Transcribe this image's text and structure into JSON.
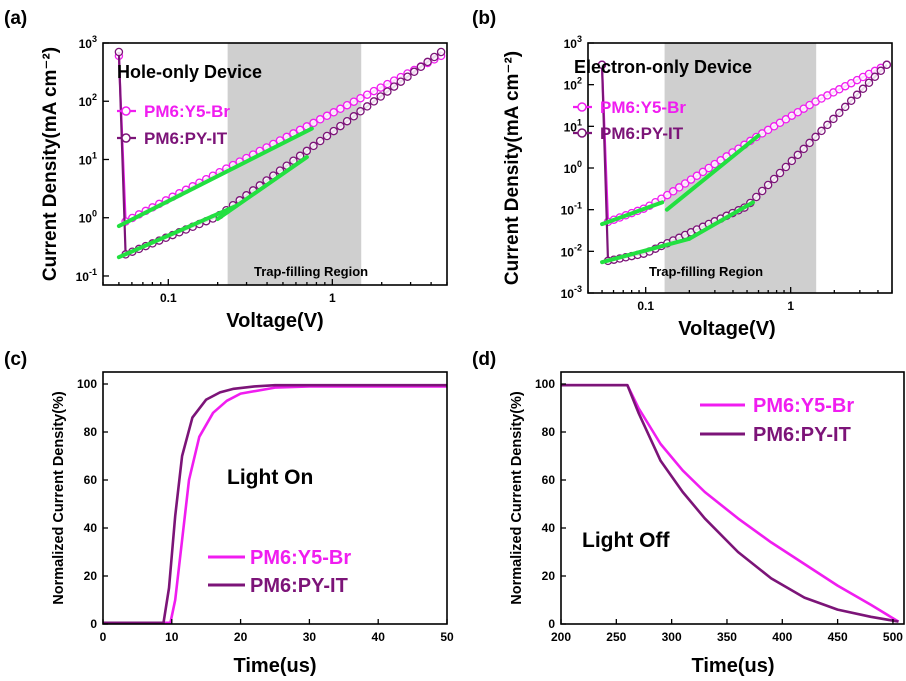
{
  "colors": {
    "pm6_y5_br": "#f01df0",
    "pm6_py_it": "#7c1478",
    "fit_line": "#22e040",
    "shade": "#cfcfcf"
  },
  "chart_data": [
    {
      "panel": "(a)",
      "type": "scatter",
      "inner_title": "Hole-only Device",
      "xlabel": "Voltage(V)",
      "ylabel": "Current Density(mA cm⁻²)",
      "x_scale": "log",
      "y_scale": "log",
      "xlim": [
        0.04,
        5
      ],
      "ylim": [
        0.07,
        1000
      ],
      "x_ticks": [
        {
          "v": 0.1,
          "label": "0.1"
        },
        {
          "v": 1,
          "label": "1"
        }
      ],
      "y_ticks": [
        {
          "v": 0.1,
          "base": "10",
          "exp": "-1"
        },
        {
          "v": 1,
          "base": "10",
          "exp": "0"
        },
        {
          "v": 10,
          "base": "10",
          "exp": "1"
        },
        {
          "v": 100,
          "base": "10",
          "exp": "2"
        },
        {
          "v": 1000,
          "base": "10",
          "exp": "3"
        }
      ],
      "shaded_region": {
        "x": [
          0.23,
          1.5
        ],
        "label": "Trap-filling Region"
      },
      "series": [
        {
          "name": "PM6:Y5-Br",
          "x": [
            0.05,
            4.6
          ],
          "y": [
            0.75,
            600
          ]
        },
        {
          "name": "PM6:PY-IT",
          "x": [
            0.05,
            0.2,
            4.6
          ],
          "y": [
            0.21,
            1.05,
            700
          ]
        }
      ],
      "fits": [
        {
          "x": [
            0.05,
            0.75
          ],
          "y": [
            0.72,
            34
          ]
        },
        {
          "x": [
            0.05,
            0.26
          ],
          "y": [
            0.21,
            1.6
          ]
        },
        {
          "x": [
            0.2,
            0.7
          ],
          "y": [
            0.95,
            11
          ]
        }
      ]
    },
    {
      "panel": "(b)",
      "type": "scatter",
      "inner_title": "Electron-only Device",
      "xlabel": "Voltage(V)",
      "ylabel": "Current Density(mA cm⁻²)",
      "x_scale": "log",
      "y_scale": "log",
      "xlim": [
        0.04,
        5
      ],
      "ylim": [
        0.001,
        1000
      ],
      "x_ticks": [
        {
          "v": 0.1,
          "label": "0.1"
        },
        {
          "v": 1,
          "label": "1"
        }
      ],
      "y_ticks": [
        {
          "v": 0.001,
          "base": "10",
          "exp": "-3"
        },
        {
          "v": 0.01,
          "base": "10",
          "exp": "-2"
        },
        {
          "v": 0.1,
          "base": "10",
          "exp": "-1"
        },
        {
          "v": 1,
          "base": "10",
          "exp": "0"
        },
        {
          "v": 10,
          "base": "10",
          "exp": "1"
        },
        {
          "v": 100,
          "base": "10",
          "exp": "2"
        },
        {
          "v": 1000,
          "base": "10",
          "exp": "3"
        }
      ],
      "shaded_region": {
        "x": [
          0.135,
          1.5
        ],
        "label": "Trap-filling Region"
      },
      "series": [
        {
          "name": "PM6:Y5-Br",
          "x": [
            0.05,
            0.1,
            0.14,
            0.6,
            1.5,
            4.6
          ],
          "y": [
            0.045,
            0.11,
            0.22,
            6,
            40,
            300
          ]
        },
        {
          "name": "PM6:PY-IT",
          "x": [
            0.05,
            0.1,
            0.5,
            4.6
          ],
          "y": [
            0.0055,
            0.009,
            0.12,
            300
          ]
        }
      ],
      "fits": [
        {
          "x": [
            0.05,
            0.13
          ],
          "y": [
            0.045,
            0.15
          ]
        },
        {
          "x": [
            0.14,
            0.6
          ],
          "y": [
            0.1,
            6
          ]
        },
        {
          "x": [
            0.05,
            0.2
          ],
          "y": [
            0.0055,
            0.02
          ]
        },
        {
          "x": [
            0.2,
            0.55
          ],
          "y": [
            0.02,
            0.15
          ]
        }
      ]
    },
    {
      "panel": "(c)",
      "type": "line",
      "inner_title": "Light On",
      "xlabel": "Time(us)",
      "ylabel": "Normalized Current Density(%)",
      "xlim": [
        0,
        50
      ],
      "ylim": [
        0,
        105
      ],
      "x_ticks": [
        0,
        10,
        20,
        30,
        40,
        50
      ],
      "y_ticks": [
        0,
        20,
        40,
        60,
        80,
        100
      ],
      "series": [
        {
          "name": "PM6:Y5-Br",
          "x": [
            0,
            9.8,
            10.5,
            11.5,
            12.5,
            14,
            16,
            18,
            20,
            25,
            30,
            50
          ],
          "y": [
            0.5,
            0.5,
            10,
            35,
            60,
            78,
            88,
            93,
            96,
            98.5,
            99,
            99
          ]
        },
        {
          "name": "PM6:PY-IT",
          "x": [
            0,
            8.8,
            9.6,
            10.5,
            11.5,
            13,
            15,
            17,
            19,
            22,
            25,
            50
          ],
          "y": [
            0.5,
            0.5,
            15,
            45,
            70,
            86,
            93.5,
            96.5,
            98,
            99,
            99.5,
            99.5
          ]
        }
      ]
    },
    {
      "panel": "(d)",
      "type": "line",
      "inner_title": "Light Off",
      "xlabel": "Time(us)",
      "ylabel": "Normalized Current Density(%)",
      "xlim": [
        200,
        510
      ],
      "ylim": [
        0,
        105
      ],
      "x_ticks": [
        200,
        250,
        300,
        350,
        400,
        450,
        500
      ],
      "y_ticks": [
        0,
        20,
        40,
        60,
        80,
        100
      ],
      "series": [
        {
          "name": "PM6:Y5-Br",
          "x": [
            200,
            260,
            270,
            290,
            310,
            330,
            360,
            390,
            420,
            450,
            480,
            505
          ],
          "y": [
            99.5,
            99.5,
            90,
            75,
            64,
            55,
            44,
            34,
            25,
            16,
            8,
            1
          ]
        },
        {
          "name": "PM6:PY-IT",
          "x": [
            200,
            260,
            270,
            290,
            310,
            330,
            360,
            390,
            420,
            450,
            480,
            505
          ],
          "y": [
            99.5,
            99.5,
            88,
            68,
            55,
            44,
            30,
            19,
            11,
            6,
            3,
            1
          ]
        }
      ]
    }
  ]
}
